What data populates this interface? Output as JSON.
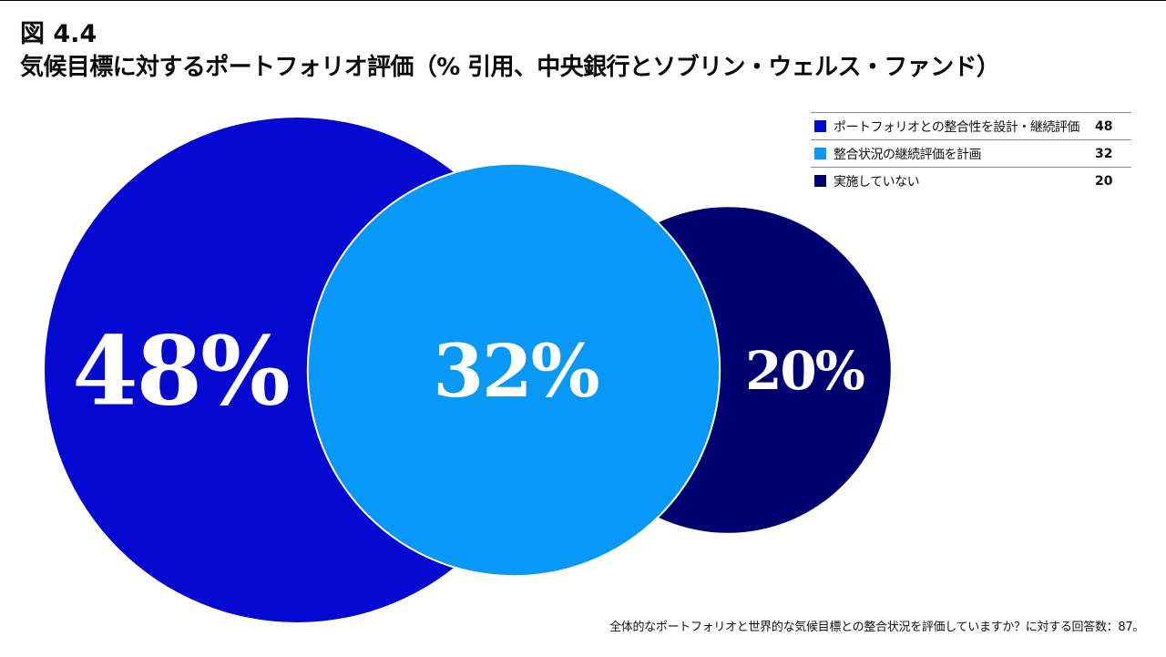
{
  "title": {
    "number": "図 4.4",
    "text": "気候目標に対するポートフォリオ評価（% 引用、中央銀行とソブリン・ウェルス・ファンド）"
  },
  "footnote": "全体的なポートフォリオと世界的な気候目標との整合状況を評価していますか？に対する回答数：87。",
  "chart_data": {
    "type": "bubble",
    "unit": "%",
    "series": [
      {
        "name": "ポートフォリオとの整合性を設計・継続評価",
        "value": 48,
        "label": "48%",
        "color": "#0408d0"
      },
      {
        "name": "整合状況の継続評価を計画",
        "value": 32,
        "label": "32%",
        "color": "#0898f8"
      },
      {
        "name": "実施していない",
        "value": 20,
        "label": "20%",
        "color": "#000070"
      }
    ],
    "legend_position": "top-right"
  }
}
